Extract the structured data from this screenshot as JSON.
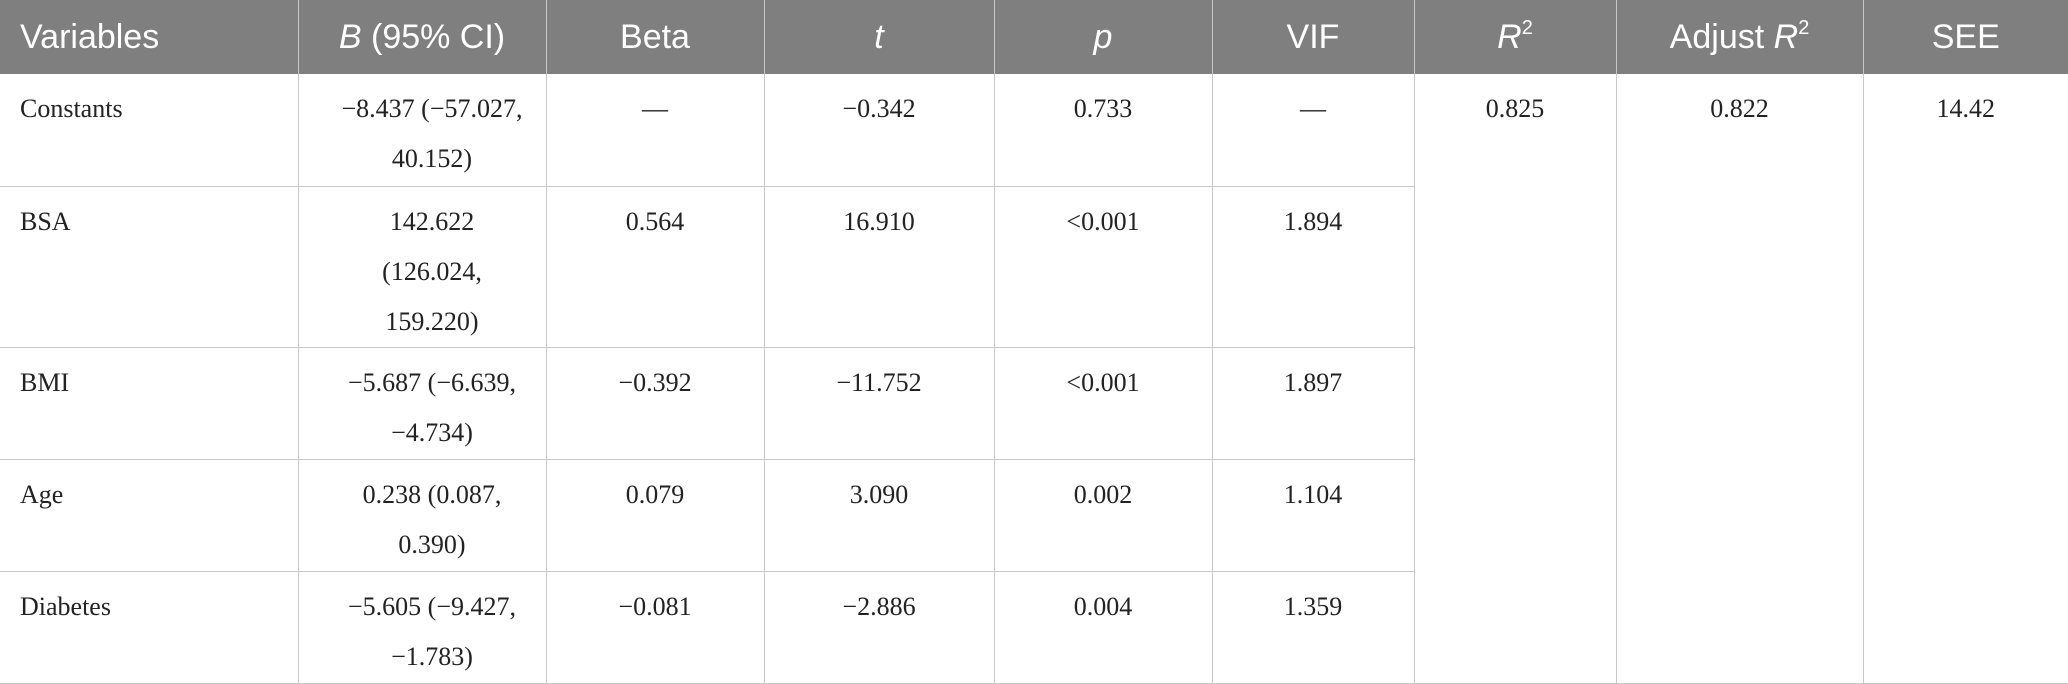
{
  "table": {
    "headers": [
      {
        "label": "Variables"
      },
      {
        "italic": "B",
        "rest": " (95% CI)"
      },
      {
        "label": "Beta"
      },
      {
        "italic": "t"
      },
      {
        "italic": "p"
      },
      {
        "label": "VIF"
      },
      {
        "italic": "R",
        "sup": "2"
      },
      {
        "pre": "Adjust ",
        "italic": "R",
        "sup": "2"
      },
      {
        "label": "SEE"
      }
    ],
    "rows": [
      {
        "variable": "Constants",
        "b_ci": "−8.437 (−57.027, 40.152)",
        "beta": "—",
        "t": "−0.342",
        "p": "0.733",
        "vif": "—"
      },
      {
        "variable": "BSA",
        "b_ci": "142.622 (126.024, 159.220)",
        "beta": "0.564",
        "t": "16.910",
        "p": "<0.001",
        "vif": "1.894"
      },
      {
        "variable": "BMI",
        "b_ci": "−5.687 (−6.639, −4.734)",
        "beta": "−0.392",
        "t": "−11.752",
        "p": "<0.001",
        "vif": "1.897"
      },
      {
        "variable": "Age",
        "b_ci": "0.238 (0.087, 0.390)",
        "beta": "0.079",
        "t": "3.090",
        "p": "0.002",
        "vif": "1.104"
      },
      {
        "variable": "Diabetes",
        "b_ci": "−5.605 (−9.427, −1.783)",
        "beta": "−0.081",
        "t": "−2.886",
        "p": "0.004",
        "vif": "1.359"
      }
    ],
    "summary": {
      "r2": "0.825",
      "adjust_r2": "0.822",
      "see": "14.42"
    }
  }
}
